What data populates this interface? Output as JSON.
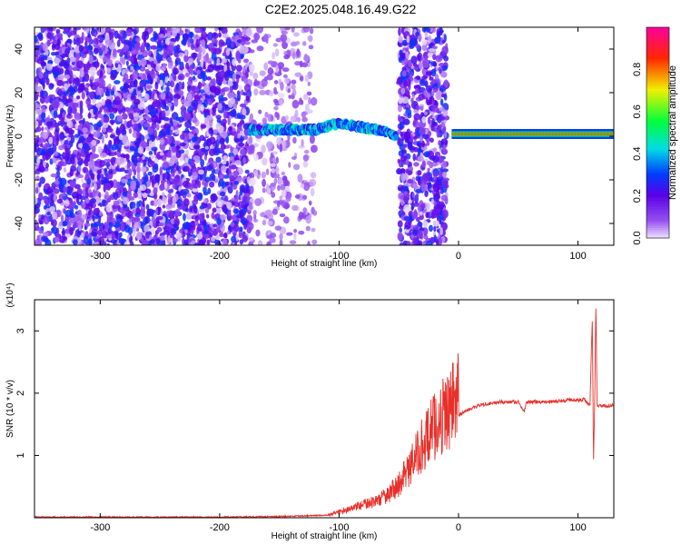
{
  "page_title": "C2E2.2025.048.16.49.G22",
  "colors": {
    "snr_line": "#e8302a",
    "scatter_purple": "#7a1fe6",
    "axis": "#000000"
  },
  "chart_data": [
    {
      "type": "heatmap",
      "title": "C2E2.2025.048.16.49.G22",
      "xlabel": "Height of straight line (km)",
      "ylabel": "Frequency (Hz)",
      "xlim": [
        -355,
        130
      ],
      "ylim": [
        -50,
        50
      ],
      "x_ticks": [
        -300,
        -200,
        -100,
        0,
        100
      ],
      "y_ticks": [
        -40,
        -20,
        0,
        20,
        40
      ],
      "colorbar": {
        "label": "Normalized spectral amplitude",
        "range": [
          0,
          1
        ],
        "ticks": [
          "0.0",
          "0.2",
          "0.4",
          "0.6",
          "0.8"
        ],
        "colormap": "rainbow-purple-to-magenta"
      },
      "features": [
        {
          "kind": "noise",
          "x_range": [
            -355,
            -175
          ],
          "f_range": [
            -50,
            50
          ],
          "amplitude": 0.15
        },
        {
          "kind": "sparse_noise",
          "x_range": [
            -175,
            -120
          ],
          "f_range": [
            -50,
            50
          ],
          "amplitude": 0.06
        },
        {
          "kind": "signal_track",
          "x": [
            -175,
            -120,
            -100,
            -60,
            -52
          ],
          "f": [
            3,
            3,
            6,
            2,
            0
          ],
          "amplitude": 0.4
        },
        {
          "kind": "noise",
          "x_range": [
            -50,
            -10
          ],
          "f_range": [
            -50,
            50
          ],
          "amplitude": 0.15
        },
        {
          "kind": "signal_track",
          "x": [
            -5,
            130
          ],
          "f": [
            1,
            1
          ],
          "amplitude": 0.95
        }
      ]
    },
    {
      "type": "line",
      "xlabel": "Height of straight line (km)",
      "ylabel": "SNR (10 * v/v)",
      "y_multiplier": "(x10⁴)",
      "xlim": [
        -355,
        130
      ],
      "ylim": [
        0,
        3.5
      ],
      "x_ticks": [
        -300,
        -200,
        -100,
        0,
        100
      ],
      "y_ticks": [
        1,
        2,
        3
      ],
      "series": [
        {
          "x": [
            -355,
            -200,
            -150,
            -110,
            -100,
            -90,
            -80,
            -70,
            -60,
            -50,
            -40,
            -30,
            -20,
            -15,
            -10,
            -5,
            0,
            10,
            20,
            30,
            40,
            50,
            55,
            57,
            60,
            70,
            80,
            90,
            95,
            100,
            105,
            110,
            112,
            113,
            114,
            115,
            116,
            120,
            130
          ],
          "y": [
            0.0,
            0.0,
            0.01,
            0.03,
            0.08,
            0.12,
            0.18,
            0.22,
            0.3,
            0.45,
            0.7,
            1.0,
            1.25,
            1.35,
            1.45,
            1.55,
            1.65,
            1.75,
            1.82,
            1.85,
            1.86,
            1.86,
            1.7,
            1.85,
            1.86,
            1.86,
            1.87,
            1.88,
            1.9,
            1.88,
            1.9,
            1.8,
            3.2,
            0.9,
            1.85,
            3.5,
            1.8,
            1.8,
            1.8
          ]
        }
      ]
    }
  ]
}
